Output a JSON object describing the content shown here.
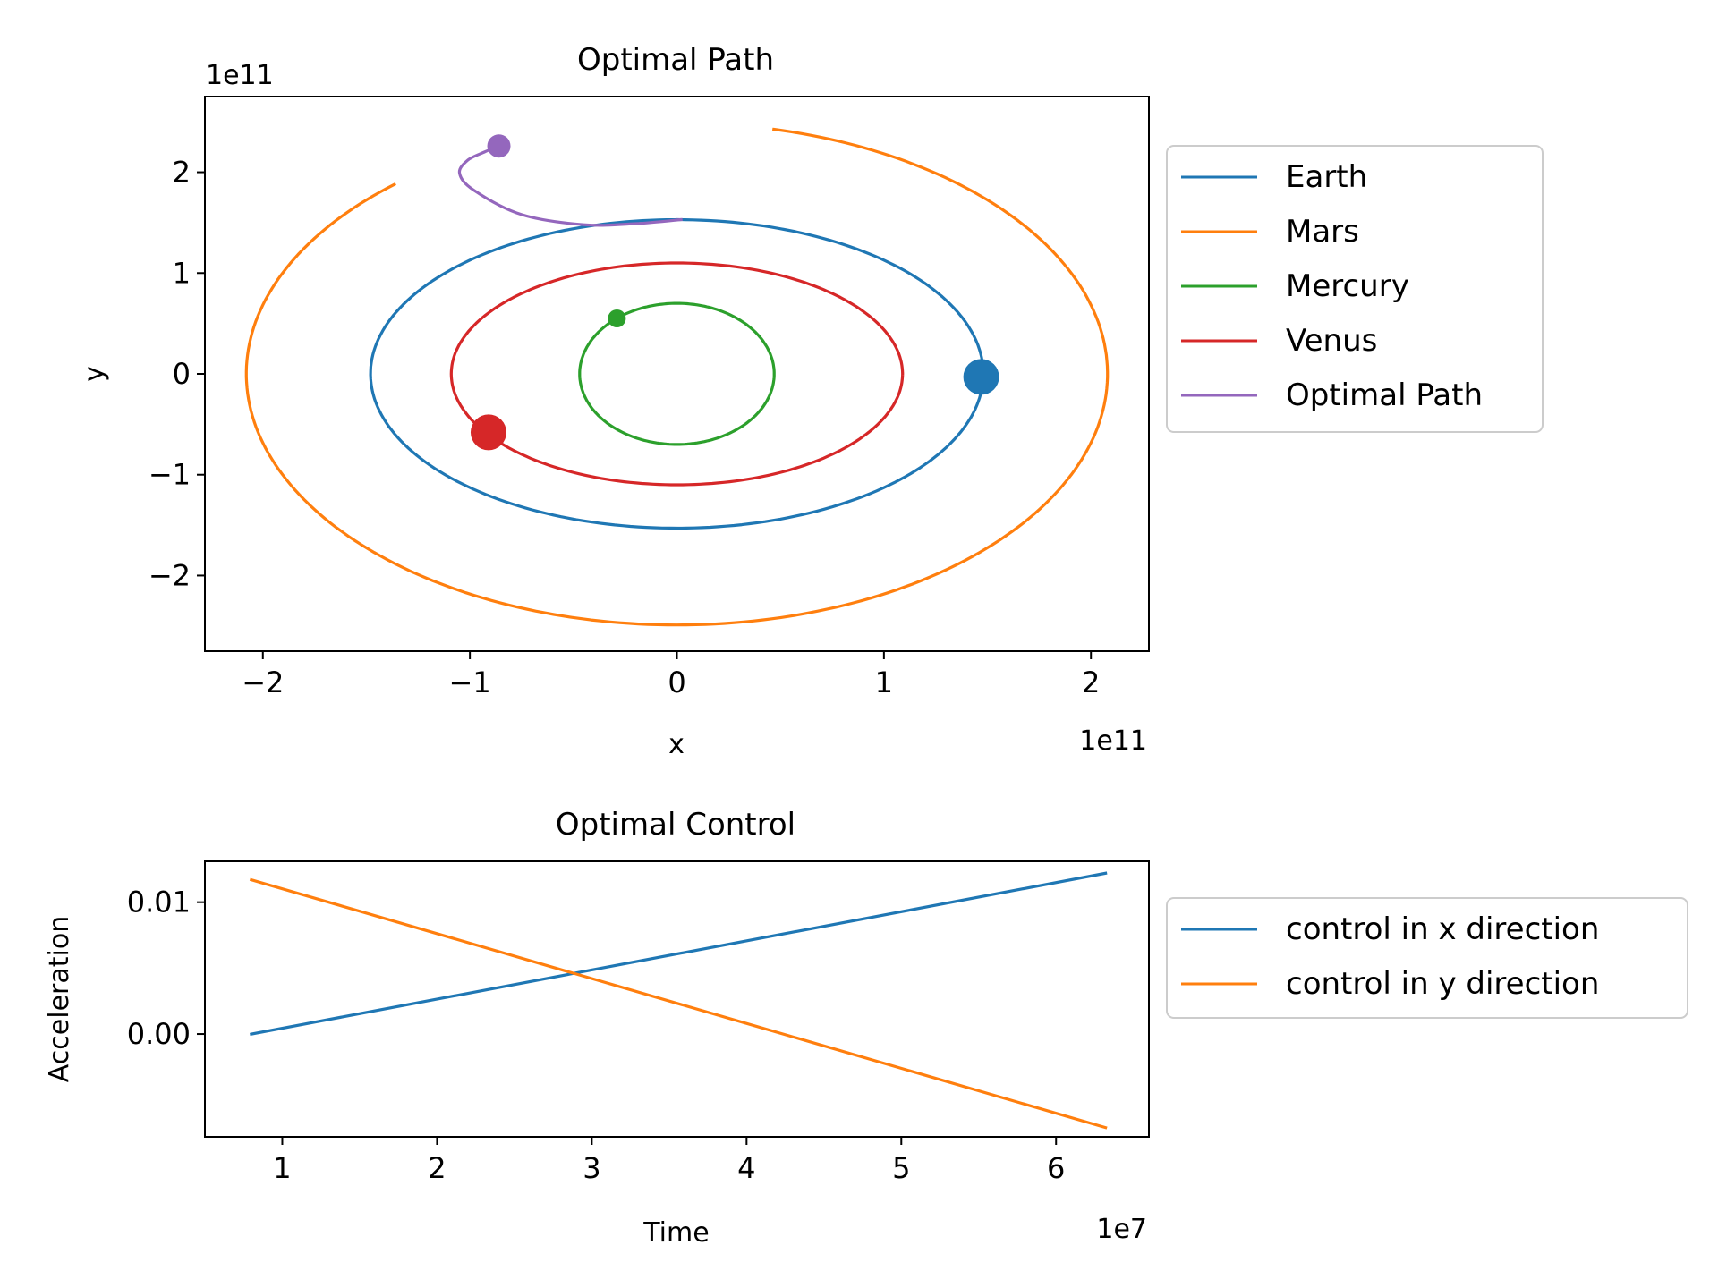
{
  "chart_data": [
    {
      "type": "line",
      "title": "Optimal Path",
      "xlabel": "x",
      "ylabel": "y",
      "x_offset_label": "1e11",
      "y_offset_label": "1e11",
      "xlim": [
        -2.28,
        2.28
      ],
      "ylim": [
        -2.75,
        2.75
      ],
      "xticks": [
        -2,
        -1,
        0,
        1,
        2
      ],
      "yticks": [
        -2,
        -1,
        0,
        1,
        2
      ],
      "xtick_labels": [
        "−2",
        "−1",
        "0",
        "1",
        "2"
      ],
      "ytick_labels": [
        "−2",
        "−1",
        "0",
        "1",
        "2"
      ],
      "legend_position": "outside right, upper",
      "series": [
        {
          "name": "Earth",
          "color": "#1f77b4",
          "shape": "ellipse",
          "a": 1.48,
          "b": 1.53,
          "start_deg": 90,
          "sweep_deg": -359.5,
          "marker": {
            "x": 1.47,
            "y": -0.03,
            "size": "large"
          }
        },
        {
          "name": "Mars",
          "color": "#ff7f0e",
          "shape": "ellipse",
          "a": 2.08,
          "b": 2.49,
          "start_deg": 77,
          "sweep_deg": -306,
          "marker": null
        },
        {
          "name": "Mercury",
          "color": "#2ca02c",
          "shape": "ellipse",
          "a": 0.47,
          "b": 0.7,
          "start_deg": 0,
          "sweep_deg": 360,
          "marker": {
            "x": -0.29,
            "y": 0.55,
            "size": "small"
          }
        },
        {
          "name": "Venus",
          "color": "#d62728",
          "shape": "ellipse",
          "a": 1.09,
          "b": 1.1,
          "start_deg": 0,
          "sweep_deg": 360,
          "marker": {
            "x": -0.91,
            "y": -0.58,
            "size": "large"
          }
        },
        {
          "name": "Optimal Path",
          "color": "#9467bd",
          "shape": "path",
          "x": [
            0.02,
            -0.2,
            -0.45,
            -0.75,
            -0.98,
            -1.05,
            -1.01,
            -0.93,
            -0.86
          ],
          "y": [
            1.53,
            1.49,
            1.48,
            1.58,
            1.82,
            1.99,
            2.12,
            2.2,
            2.26
          ],
          "marker": {
            "x": -0.86,
            "y": 2.26,
            "size": "medium"
          }
        }
      ]
    },
    {
      "type": "line",
      "title": "Optimal Control",
      "xlabel": "Time",
      "ylabel": "Acceleration",
      "x_offset_label": "1e7",
      "xlim": [
        0.5,
        6.6
      ],
      "ylim": [
        -0.0078,
        0.0131
      ],
      "xticks": [
        1,
        2,
        3,
        4,
        5,
        6
      ],
      "yticks": [
        0.0,
        0.01
      ],
      "xtick_labels": [
        "1",
        "2",
        "3",
        "4",
        "5",
        "6"
      ],
      "ytick_labels": [
        "0.00",
        "0.01"
      ],
      "legend_position": "outside right, upper",
      "series": [
        {
          "name": "control in x direction",
          "color": "#1f77b4",
          "x": [
            0.8,
            6.32
          ],
          "y": [
            0.0,
            0.0122
          ]
        },
        {
          "name": "control in y direction",
          "color": "#ff7f0e",
          "x": [
            0.8,
            6.32
          ],
          "y": [
            0.0117,
            -0.0071
          ]
        }
      ]
    }
  ]
}
